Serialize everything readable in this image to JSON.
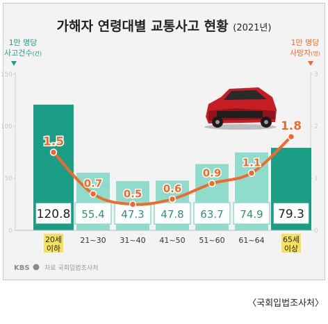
{
  "chart_data": {
    "type": "bar",
    "title": "가해자 연령대별 교통사고 현황",
    "subtitle": "(2021년)",
    "left_axis": {
      "line1": "1만 명당",
      "line2": "사고건수",
      "unit": "(건)",
      "ylim": [
        0,
        150
      ],
      "ticks": [
        "0",
        "50",
        "100",
        "150"
      ]
    },
    "right_axis": {
      "line1": "1만 명당",
      "line2": "사망자",
      "unit": "(명)",
      "ylim": [
        0,
        3
      ],
      "ticks": [
        "0",
        "1",
        "2",
        "3"
      ]
    },
    "categories": [
      {
        "line1": "20세",
        "line2": "이하",
        "highlight": true
      },
      {
        "line1": "21~30",
        "line2": "",
        "highlight": false
      },
      {
        "line1": "31~40",
        "line2": "",
        "highlight": false
      },
      {
        "line1": "41~50",
        "line2": "",
        "highlight": false
      },
      {
        "line1": "51~60",
        "line2": "",
        "highlight": false
      },
      {
        "line1": "61~64",
        "line2": "",
        "highlight": false
      },
      {
        "line1": "65세",
        "line2": "이상",
        "highlight": true
      }
    ],
    "series": [
      {
        "axis": "left",
        "kind": "bar",
        "values": [
          120.8,
          55.4,
          47.3,
          47.8,
          63.7,
          74.9,
          79.3
        ],
        "labels": [
          "120.8",
          "55.4",
          "47.3",
          "47.8",
          "63.7",
          "74.9",
          "79.3"
        ]
      },
      {
        "axis": "right",
        "kind": "line",
        "values": [
          1.5,
          0.7,
          0.5,
          0.6,
          0.9,
          1.1,
          1.8
        ],
        "labels": [
          "1.5",
          "0.7",
          "0.5",
          "0.6",
          "0.9",
          "1.1",
          "1.8"
        ]
      }
    ],
    "source": "자료  국회입법조사처",
    "logo": "KBS"
  },
  "caption": "〈국회입법조사처〉",
  "colors": {
    "bar_dark": "#1a9e85",
    "bar_light": "#8fdccd",
    "line": "#f06a2a",
    "label_box_border": "#1a9e85",
    "highlight_label_bg": "#f6e25a",
    "left_axis_color": "#1a9e85",
    "right_axis_color": "#f06a2a",
    "tick_color": "#c8c8c8",
    "title_color": "#222222"
  }
}
